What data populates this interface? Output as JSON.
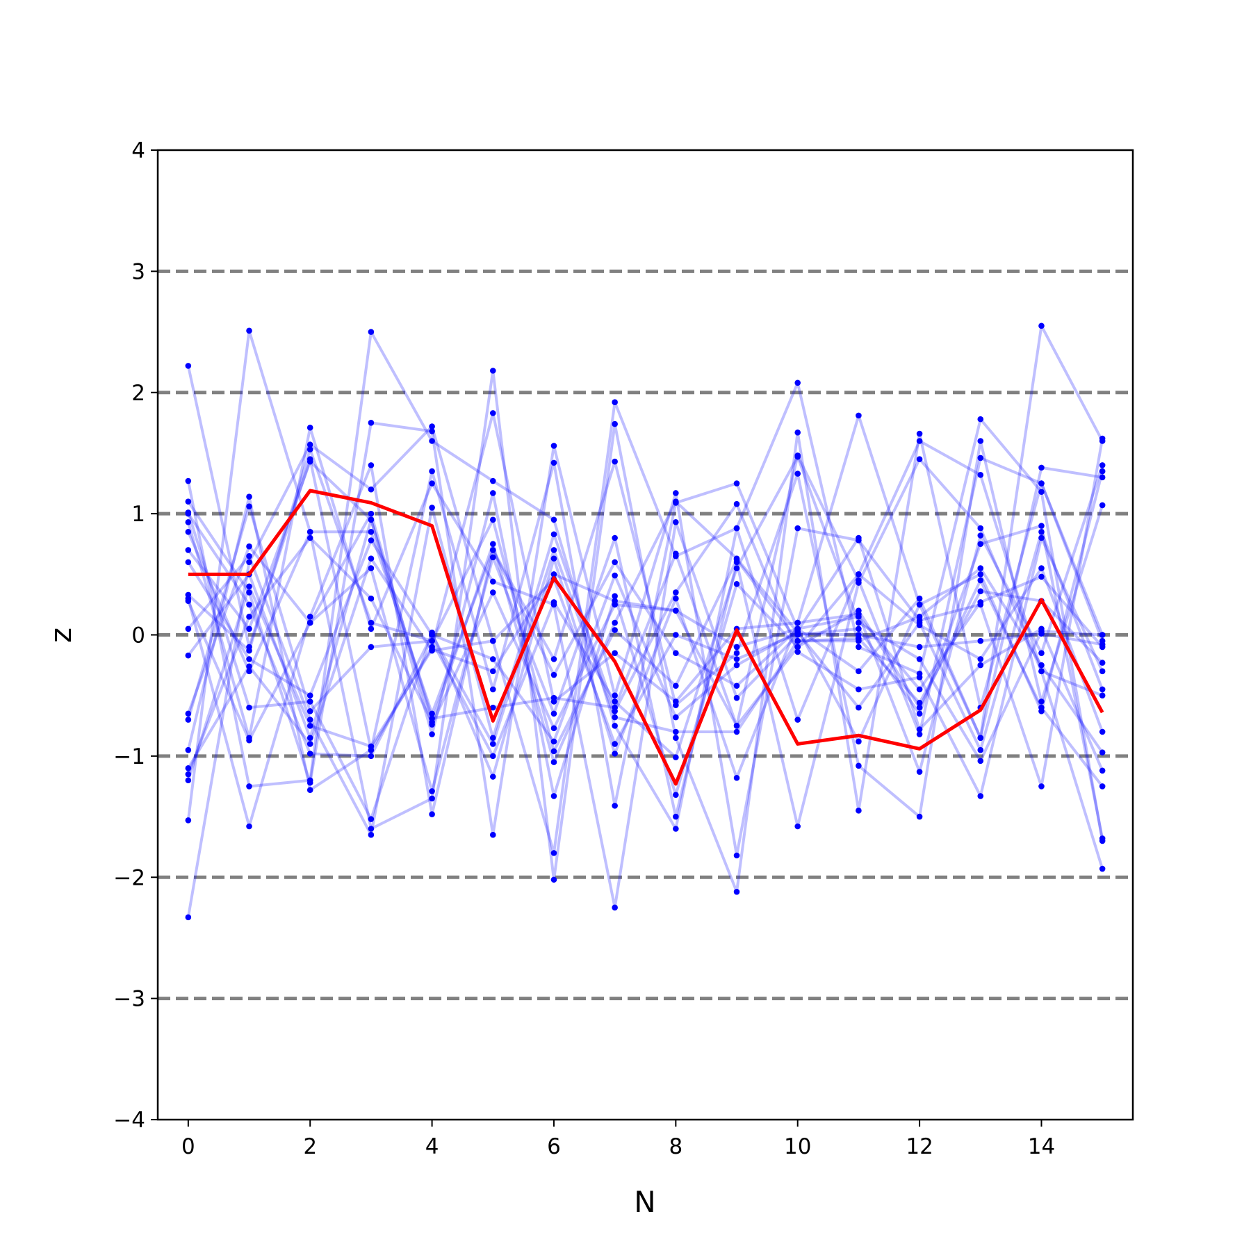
{
  "chart_data": {
    "type": "line",
    "title": "",
    "xlabel": "N",
    "ylabel": "z",
    "xlim": [
      -0.5,
      15.5
    ],
    "ylim": [
      -4,
      4
    ],
    "xticks": [
      0,
      2,
      4,
      6,
      8,
      10,
      12,
      14
    ],
    "yticks": [
      -4,
      -3,
      -2,
      -1,
      0,
      1,
      2,
      3,
      4
    ],
    "ytick_labels": [
      "−4",
      "−3",
      "−2",
      "−1",
      "0",
      "1",
      "2",
      "3",
      "4"
    ],
    "reference_lines_y": [
      -3,
      -2,
      -1,
      0,
      1,
      2,
      3
    ],
    "reference_line_color": "#808080",
    "background_series_color": "#0000ff",
    "highlight_color": "#ff0000",
    "x": [
      0,
      1,
      2,
      3,
      4,
      5,
      6,
      7,
      8,
      9,
      10,
      11,
      12,
      13,
      14,
      15
    ],
    "highlight": [
      0.5,
      0.5,
      1.19,
      1.09,
      0.9,
      -0.71,
      0.47,
      -0.22,
      -1.23,
      0.04,
      -0.9,
      -0.83,
      -0.94,
      -0.62,
      0.29,
      -0.64
    ],
    "background_series": [
      [
        2.22,
        -0.1,
        1.45,
        -0.95,
        -0.1,
        1.83,
        -0.55,
        -0.15,
        -0.55,
        0.05,
        0.1,
        1.81,
        0.25,
        -0.85,
        2.55,
        1.6
      ],
      [
        -2.33,
        0.6,
        1.57,
        1.2,
        1.72,
        -0.05,
        -1.8,
        1.92,
        0.65,
        0.88,
        2.08,
        -0.1,
        -0.32,
        1.78,
        1.18,
        -1.7
      ],
      [
        1.27,
        -1.25,
        -1.2,
        2.5,
        1.6,
        1.27,
        0.95,
        -0.75,
        -1.6,
        0.88,
        -0.7,
        0.5,
        1.6,
        1.32,
        -0.3,
        -0.5
      ],
      [
        -1.53,
        2.51,
        0.85,
        -1.6,
        -1.35,
        2.18,
        -2.02,
        1.74,
        -0.85,
        -2.12,
        1.67,
        -1.45,
        1.66,
        -0.6,
        1.25,
        0.0
      ],
      [
        1.1,
        0.35,
        -1.22,
        1.75,
        1.68,
        -1.65,
        1.56,
        -0.5,
        1.17,
        -1.82,
        0.88,
        0.78,
        0.12,
        0.25,
        -1.25,
        1.62
      ],
      [
        -0.95,
        1.14,
        -1.28,
        -0.95,
        1.35,
        -0.45,
        1.42,
        -1.41,
        1.09,
        1.25,
        0.05,
        -0.3,
        0.3,
        -0.85,
        1.38,
        1.3
      ],
      [
        0.3,
        -1.58,
        0.15,
        1.4,
        -1.48,
        0.7,
        -0.2,
        1.43,
        -0.58,
        -0.15,
        1.33,
        -1.08,
        -1.5,
        1.6,
        -0.55,
        1.07
      ],
      [
        0.93,
        -0.85,
        1.71,
        0.05,
        1.25,
        0.44,
        0.25,
        -2.25,
        0.93,
        -0.52,
        0.0,
        0.05,
        -0.65,
        0.75,
        0.9,
        -1.68
      ],
      [
        -0.65,
        0.73,
        0.1,
        0.55,
        -1.29,
        0.64,
        -0.65,
        0.8,
        -1.5,
        0.6,
        -1.58,
        0.43,
        1.45,
        0.88,
        -0.3,
        -1.93
      ],
      [
        1.01,
        -0.6,
        -0.55,
        -1.52,
        0.02,
        -1.17,
        0.63,
        -0.98,
        0.3,
        -1.18,
        0.1,
        0.17,
        -1.13,
        0.82,
        -0.15,
        1.4
      ],
      [
        -0.17,
        0.5,
        -0.85,
        0.95,
        -0.82,
        1.17,
        -1.33,
        0.32,
        -1.32,
        0.42,
        -0.1,
        0.5,
        0.08,
        -0.2,
        0.55,
        -0.8
      ],
      [
        0.05,
        0.65,
        -0.7,
        -1.65,
        1.05,
        -0.85,
        0.83,
        -0.63,
        0.35,
        1.08,
        -0.14,
        -0.45,
        -0.35,
        -1.33,
        0.8,
        -0.3
      ],
      [
        0.85,
        -0.3,
        0.85,
        0.85,
        -0.65,
        0.7,
        -0.33,
        0.6,
        -0.15,
        -0.42,
        0.05,
        -0.88,
        0.25,
        0.5,
        -0.63,
        1.35
      ],
      [
        -0.7,
        1.06,
        -0.63,
        -0.1,
        -0.05,
        -1.0,
        0.27,
        -0.55,
        -1.01,
        0.55,
        1.47,
        0.1,
        -0.2,
        -1.04,
        0.03,
        0.0
      ],
      [
        0.28,
        -0.87,
        0.1,
        1.0,
        -0.74,
        0.35,
        -0.77,
        0.25,
        0.2,
        -0.75,
        -0.1,
        0.2,
        -0.6,
        0.45,
        -0.6,
        -1.25
      ],
      [
        1.0,
        0.25,
        -0.98,
        -1.0,
        0.0,
        -0.9,
        0.7,
        -0.68,
        -0.8,
        -0.8,
        -0.05,
        -0.05,
        0.15,
        0.55,
        -0.25,
        -0.97
      ],
      [
        -1.15,
        0.15,
        0.8,
        0.3,
        -0.72,
        0.75,
        -1.05,
        0.1,
        1.1,
        0.63,
        0.02,
        -0.6,
        0.1,
        -0.95,
        0.85,
        -0.45
      ],
      [
        0.6,
        -0.2,
        -0.5,
        0.78,
        0.0,
        -0.2,
        -0.88,
        0.49,
        -0.68,
        -0.25,
        0.03,
        0.8,
        -0.78,
        -0.25,
        0.05,
        -1.12
      ],
      [
        -1.2,
        0.4,
        -0.75,
        -0.92,
        -0.12,
        -0.3,
        0.5,
        0.28,
        0.2,
        -0.1,
        0.05,
        0.15,
        -0.45,
        0.27,
        0.48,
        -0.1
      ],
      [
        0.33,
        -0.13,
        1.53,
        0.1,
        -0.05,
        0.95,
        -0.96,
        0.04,
        -0.42,
        0.62,
        -0.05,
        -0.03,
        -0.56,
        0.36,
        0.28,
        -0.23
      ],
      [
        -1.1,
        -0.26,
        -0.9,
        0.63,
        -0.13,
        -0.05,
        0.46,
        -0.9,
        0.0,
        -0.2,
        0.01,
        0.0,
        -0.1,
        -0.05,
        0.01,
        -0.08
      ],
      [
        0.7,
        0.05,
        1.43,
        0.95,
        -0.69,
        -0.6,
        -0.52,
        -0.6,
        0.67,
        -0.75,
        1.48,
        0.45,
        -0.82,
        1.46,
        1.25,
        -0.05
      ]
    ]
  }
}
